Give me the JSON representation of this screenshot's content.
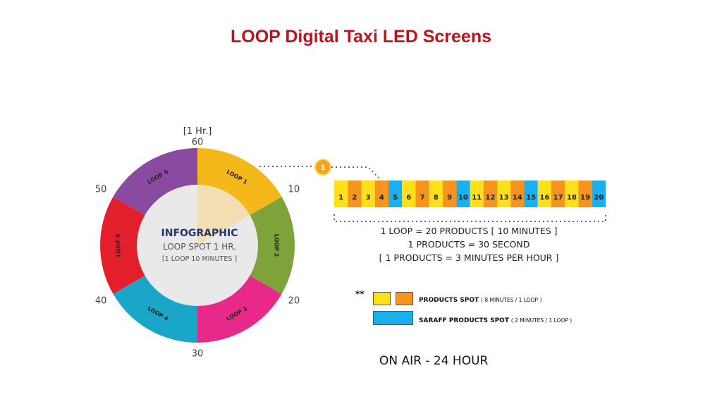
{
  "title": "LOOP  Digital Taxi LED Screens",
  "dial": {
    "top_label": "[1 Hr.]",
    "ticks": [
      "60",
      "10",
      "20",
      "30",
      "40",
      "50"
    ],
    "segments": [
      {
        "label": "LOOP 1",
        "color": "#f5b81a"
      },
      {
        "label": "LOOP 2",
        "color": "#7ea33a"
      },
      {
        "label": "LOOP 3",
        "color": "#e8298a"
      },
      {
        "label": "LOOP 4",
        "color": "#1aa6c8"
      },
      {
        "label": "LOOP 5",
        "color": "#e31e2d"
      },
      {
        "label": "LOOP 6",
        "color": "#8a4a9f"
      }
    ],
    "center": {
      "heading": "INFOGRAPHIC",
      "line1": "LOOP SPOT 1 HR.",
      "line2": "[1 LOOP 10 MINUTES ]"
    }
  },
  "callout_number": "1",
  "slots": {
    "labels": [
      "1",
      "2",
      "3",
      "4",
      "5",
      "6",
      "7",
      "8",
      "9",
      "10",
      "11",
      "12",
      "13",
      "14",
      "15",
      "16",
      "17",
      "18",
      "19",
      "20"
    ],
    "colors": [
      "#ffe01a",
      "#f7941d",
      "#ffe01a",
      "#f7941d",
      "#1ab0f0",
      "#ffe01a",
      "#f7941d",
      "#ffe01a",
      "#f7941d",
      "#1ab0f0",
      "#ffe01a",
      "#f7941d",
      "#ffe01a",
      "#f7941d",
      "#1ab0f0",
      "#ffe01a",
      "#f7941d",
      "#ffe01a",
      "#f7941d",
      "#1ab0f0"
    ]
  },
  "description": [
    "1 LOOP = 20 PRODUCTS [ 10 MINUTES ]",
    "1  PRODUCTS = 30 SECOND",
    "[ 1  PRODUCTS = 3 MINUTES PER HOUR ]"
  ],
  "legend": {
    "marker": "**",
    "items": [
      {
        "label": "PRODUCTS  SPOT",
        "detail": "( 8 MINUTES / 1 LOOP )",
        "colors": [
          "#ffe01a",
          "#f7941d"
        ]
      },
      {
        "label": "SARAFF PRODUCTS  SPOT",
        "detail": "( 2 MINUTES / 1 LOOP )",
        "colors": [
          "#1ab0f0"
        ]
      }
    ]
  },
  "footer": "ON AIR - 24 HOUR"
}
